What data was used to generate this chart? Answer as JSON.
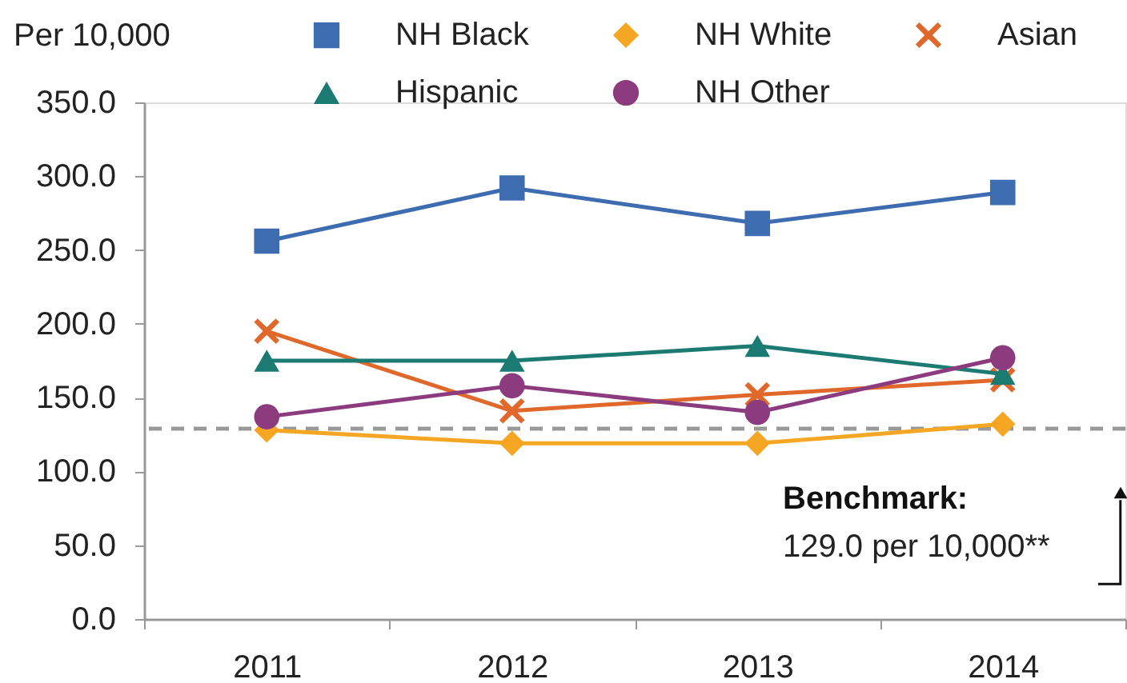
{
  "chart_data": {
    "type": "line",
    "ylabel": "Per 10,000",
    "categories": [
      "2011",
      "2012",
      "2013",
      "2014"
    ],
    "series": [
      {
        "name": "NH Black",
        "color": "#3d6cb0",
        "marker": "square",
        "values": [
          256,
          292,
          268,
          289
        ]
      },
      {
        "name": "NH White",
        "color": "#f5a623",
        "marker": "diamond",
        "values": [
          128,
          119,
          119,
          132
        ]
      },
      {
        "name": "Asian",
        "color": "#e0682b",
        "marker": "cross",
        "values": [
          195,
          141,
          152,
          162
        ]
      },
      {
        "name": "Hispanic",
        "color": "#1b7b72",
        "marker": "triangle",
        "values": [
          175,
          175,
          185,
          166
        ]
      },
      {
        "name": "NH Other",
        "color": "#8c3b7f",
        "marker": "circle",
        "values": [
          137,
          158,
          140,
          177
        ]
      }
    ],
    "ylim": [
      0,
      350
    ],
    "yticks": [
      {
        "value": 0,
        "label": "0.0"
      },
      {
        "value": 50,
        "label": "50.0"
      },
      {
        "value": 100,
        "label": "100.0"
      },
      {
        "value": 150,
        "label": "150.0"
      },
      {
        "value": 200,
        "label": "200.0"
      },
      {
        "value": 250,
        "label": "250.0"
      },
      {
        "value": 300,
        "label": "300.0"
      },
      {
        "value": 350,
        "label": "350.0"
      }
    ],
    "grid": false,
    "legend": "top",
    "line_style": "solid",
    "ref_lines": [
      {
        "axis": "y",
        "value": 129.0,
        "label": "Benchmark:",
        "color": "#999999",
        "line_style": "dashed"
      }
    ],
    "annotations": [
      "129.0 per 10,000**"
    ]
  }
}
